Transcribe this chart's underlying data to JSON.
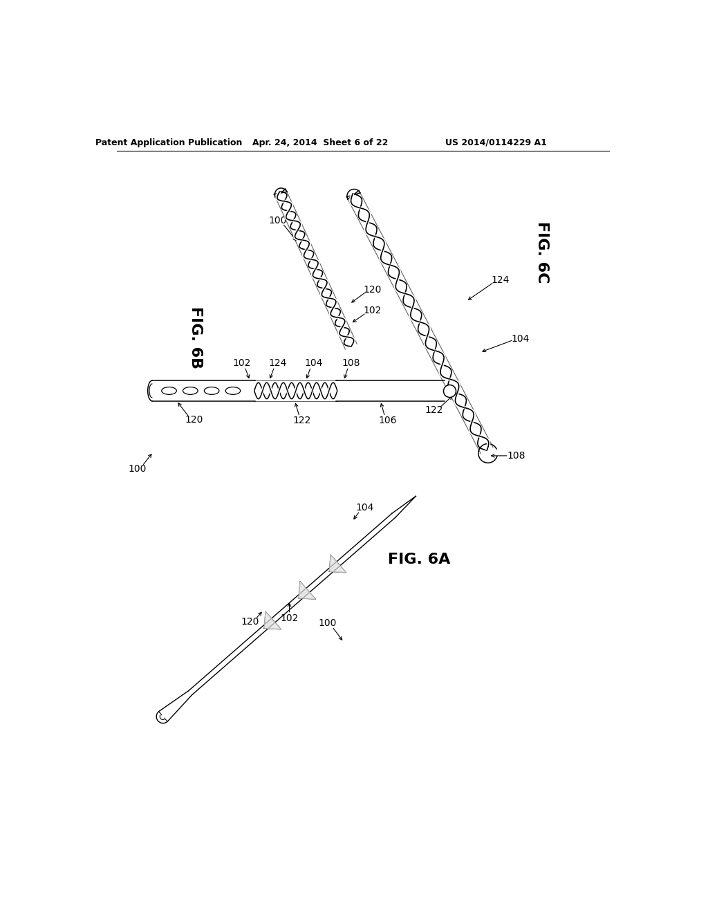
{
  "background_color": "#ffffff",
  "header_left": "Patent Application Publication",
  "header_mid": "Apr. 24, 2014  Sheet 6 of 22",
  "header_right": "US 2014/0114229 A1",
  "fig6a_label": "FIG. 6A",
  "fig6b_label": "FIG. 6B",
  "fig6c_label": "FIG. 6C",
  "fig_label_fontsize": 16,
  "header_fontsize": 9,
  "ref_fontsize": 10
}
